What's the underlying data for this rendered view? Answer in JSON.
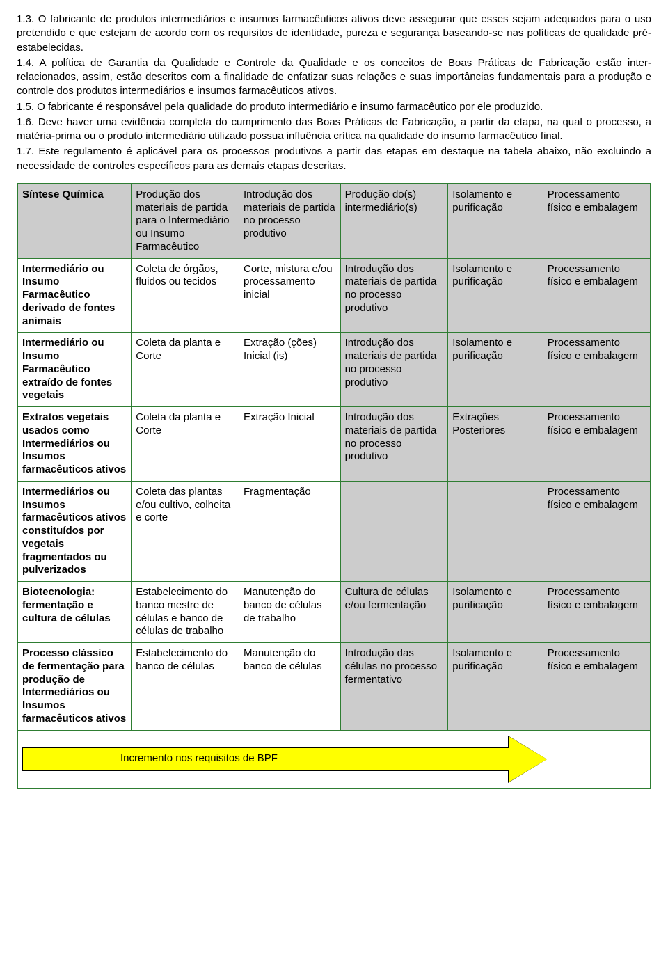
{
  "paragraphs": [
    "1.3. O fabricante de produtos intermediários e insumos farmacêuticos ativos deve assegurar que esses sejam adequados para o uso pretendido e que estejam de acordo com os requisitos de identidade, pureza e segurança baseando-se nas políticas de qualidade pré-estabelecidas.",
    "1.4. A política de Garantia da Qualidade e Controle da Qualidade e os conceitos de Boas Práticas de Fabricação estão inter-relacionados, assim, estão descritos com a finalidade de enfatizar suas relações e suas importâncias fundamentais para a produção e controle dos produtos intermediários e insumos farmacêuticos ativos.",
    "1.5. O fabricante é responsável pela qualidade do produto intermediário e insumo farmacêutico por ele produzido.",
    "1.6. Deve haver uma evidência completa do cumprimento das Boas Práticas de Fabricação, a partir da etapa, na qual o processo, a matéria-prima ou o produto intermediário utilizado possua influência crítica na qualidade do insumo farmacêutico final.",
    "1.7. Este regulamento é aplicável para os processos produtivos a partir das etapas em destaque na tabela abaixo, não excluindo a necessidade de controles específicos para as demais etapas descritas."
  ],
  "table": {
    "border_color": "#2e7d32",
    "header_bg": "#cccccc",
    "highlight_bg": "#cccccc",
    "plain_bg": "#ffffff",
    "col_widths": [
      "18%",
      "17%",
      "16%",
      "17%",
      "15%",
      "17%"
    ],
    "rows": [
      {
        "cells": [
          {
            "t": "Síntese Química",
            "bold": true,
            "bg": "header"
          },
          {
            "t": "Produção dos materiais de partida para o Intermediário ou Insumo Farmacêutico",
            "bg": "header"
          },
          {
            "t": "Introdução dos materiais de partida  no processo produtivo",
            "bg": "highlight"
          },
          {
            "t": "Produção do(s) intermediário(s)",
            "bg": "highlight"
          },
          {
            "t": "Isolamento e purificação",
            "bg": "highlight"
          },
          {
            "t": "Processamento físico e embalagem",
            "bg": "highlight"
          }
        ]
      },
      {
        "cells": [
          {
            "t": "Intermediário ou Insumo Farmacêutico derivado de fontes animais",
            "bold": true,
            "bg": "plain"
          },
          {
            "t": "Coleta de órgãos, fluidos ou tecidos",
            "bg": "plain"
          },
          {
            "t": "Corte, mistura e/ou processamento inicial",
            "bg": "plain"
          },
          {
            "t": "Introdução dos materiais de partida no processo produtivo",
            "bg": "highlight"
          },
          {
            "t": "Isolamento e purificação",
            "bg": "highlight"
          },
          {
            "t": "Processamento físico e embalagem",
            "bg": "highlight"
          }
        ]
      },
      {
        "cells": [
          {
            "t": "Intermediário ou Insumo Farmacêutico extraído de fontes vegetais",
            "bold": true,
            "bg": "plain"
          },
          {
            "t": "Coleta da planta e Corte",
            "bg": "plain"
          },
          {
            "t": "Extração (ções) Inicial (is)",
            "bg": "plain"
          },
          {
            "t": "Introdução dos materiais de partida no processo produtivo",
            "bg": "highlight"
          },
          {
            "t": "Isolamento e purificação",
            "bg": "highlight"
          },
          {
            "t": "Processamento físico e embalagem",
            "bg": "highlight"
          }
        ]
      },
      {
        "cells": [
          {
            "t": "Extratos vegetais usados como Intermediários ou Insumos farmacêuticos ativos",
            "bold": true,
            "bg": "plain"
          },
          {
            "t": "Coleta da planta e Corte",
            "bg": "plain"
          },
          {
            "t": "Extração Inicial",
            "bg": "plain"
          },
          {
            "t": "Introdução dos materiais de partida no processo produtivo",
            "bg": "highlight"
          },
          {
            "t": "Extrações Posteriores",
            "bg": "highlight"
          },
          {
            "t": "Processamento físico e embalagem",
            "bg": "highlight"
          }
        ]
      },
      {
        "cells": [
          {
            "t": "Intermediários ou Insumos farmacêuticos ativos constituídos por vegetais fragmentados ou pulverizados",
            "bold": true,
            "bg": "plain"
          },
          {
            "t": "Coleta das plantas e/ou cultivo, colheita e corte",
            "bg": "plain"
          },
          {
            "t": "Fragmentação",
            "bg": "plain"
          },
          {
            "t": "",
            "bg": "highlight"
          },
          {
            "t": "",
            "bg": "highlight"
          },
          {
            "t": "Processamento físico e embalagem",
            "bg": "highlight"
          }
        ]
      },
      {
        "cells": [
          {
            "t": "Biotecnologia: fermentação e cultura de células",
            "bold": true,
            "bg": "plain"
          },
          {
            "t": "Estabelecimento do banco mestre de células e banco de células de trabalho",
            "bg": "plain"
          },
          {
            "t": "Manutenção do banco de células de trabalho",
            "bg": "plain"
          },
          {
            "t": "Cultura de células e/ou fermentação",
            "bg": "highlight"
          },
          {
            "t": "Isolamento e purificação",
            "bg": "highlight"
          },
          {
            "t": "Processamento físico e embalagem",
            "bg": "highlight"
          }
        ]
      },
      {
        "cells": [
          {
            "t": "Processo clássico de fermentação para produção de Intermediários ou Insumos farmacêuticos ativos",
            "bold": true,
            "bg": "plain"
          },
          {
            "t": "Estabelecimento do banco de células",
            "bg": "plain"
          },
          {
            "t": "Manutenção do banco de células",
            "bg": "plain"
          },
          {
            "t": "Introdução das células no processo fermentativo",
            "bg": "highlight"
          },
          {
            "t": "Isolamento e purificação",
            "bg": "highlight"
          },
          {
            "t": "Processamento físico e embalagem",
            "bg": "highlight"
          }
        ]
      }
    ]
  },
  "arrow_label": "Incremento nos requisitos de BPF"
}
